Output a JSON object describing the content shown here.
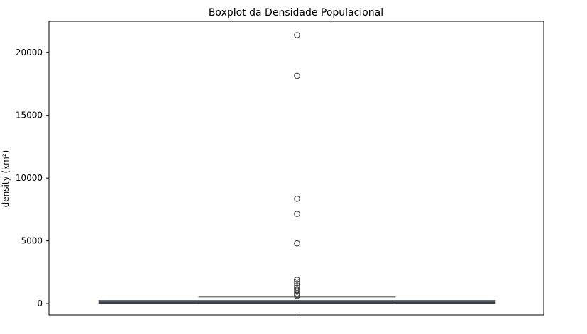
{
  "chart_data": {
    "type": "boxplot",
    "title": "Boxplot da Densidade Populacional",
    "xlabel": "",
    "ylabel": "density (km²)",
    "ylim": [
      -900,
      22500
    ],
    "yticks": [
      0,
      5000,
      10000,
      15000,
      20000
    ],
    "ytick_labels": [
      "0",
      "5000",
      "10000",
      "15000",
      "20000"
    ],
    "box": {
      "whisker_low": 0,
      "q1": 30,
      "median": 90,
      "q3": 230,
      "whisker_high": 530
    },
    "outliers": [
      21400,
      18150,
      8350,
      7150,
      4800,
      1900,
      1750,
      1600,
      1400,
      1250,
      1100,
      950,
      800,
      700,
      620
    ],
    "grid": false,
    "colors": {
      "box_fill": "#3f5f82",
      "box_edge": "#3f3f3f",
      "whisker": "#7f7f7f",
      "outlier_edge": "#3f3f3f"
    }
  }
}
